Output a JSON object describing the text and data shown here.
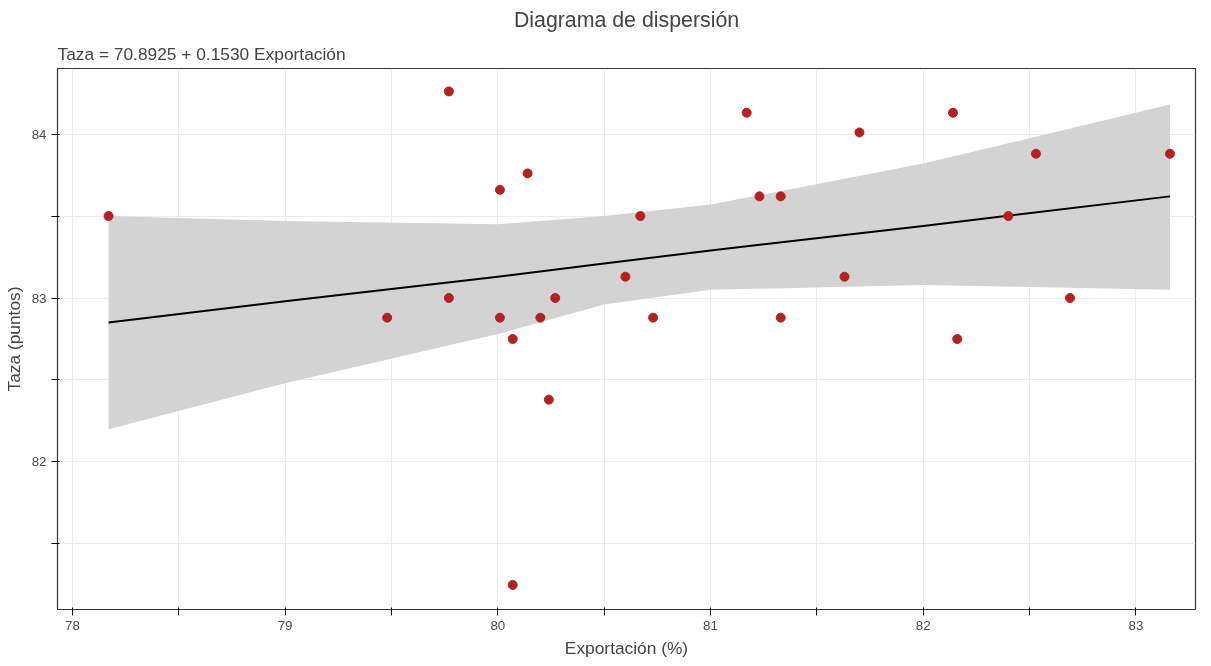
{
  "chart_data": {
    "type": "scatter",
    "title": "Diagrama de dispersión",
    "subtitle": "Taza = 70.8925 + 0.1530 Exportación",
    "xlabel": "Exportación (%)",
    "ylabel": "Taza (puntos)",
    "xlim": [
      77.93,
      83.28
    ],
    "ylim": [
      81.1,
      84.4
    ],
    "xticks": [
      78,
      {
        "value": 78.5,
        "label": null
      },
      79,
      {
        "value": 79.5,
        "label": null
      },
      80,
      {
        "value": 80.5,
        "label": null
      },
      81,
      {
        "value": 81.5,
        "label": null
      },
      82,
      {
        "value": 82.5,
        "label": null
      },
      83
    ],
    "yticks": [
      {
        "value": 81.5,
        "label": null
      },
      82,
      {
        "value": 82.5,
        "label": null
      },
      83,
      {
        "value": 83.5,
        "label": null
      },
      84
    ],
    "grid": true,
    "series": [
      {
        "marker": "circle",
        "color": "#b22222",
        "x": [
          78.17,
          79.48,
          79.77,
          79.77,
          80.01,
          80.01,
          80.07,
          80.07,
          80.14,
          80.2,
          80.24,
          80.27,
          80.6,
          80.67,
          80.73,
          81.17,
          81.23,
          81.33,
          81.33,
          81.63,
          81.7,
          82.14,
          82.16,
          82.4,
          82.53,
          82.69,
          83.16
        ],
        "values": [
          83.5,
          82.88,
          84.26,
          83.0,
          83.66,
          82.88,
          82.75,
          81.25,
          83.76,
          82.88,
          82.38,
          83.0,
          83.13,
          83.5,
          82.88,
          84.13,
          83.62,
          83.62,
          82.88,
          83.13,
          84.01,
          84.13,
          82.75,
          83.5,
          83.88,
          83.0,
          83.88
        ]
      },
      {
        "type": "line",
        "marker": "none",
        "color": "#000000",
        "x": [
          78.17,
          79,
          80,
          80.5,
          81,
          82,
          83.16
        ],
        "values": [
          82.85,
          82.98,
          83.13,
          83.21,
          83.29,
          83.44,
          83.62
        ],
        "lower": [
          82.2,
          82.48,
          82.78,
          82.96,
          83.05,
          83.08,
          83.05
        ],
        "upper": [
          83.5,
          83.47,
          83.45,
          83.5,
          83.57,
          83.82,
          84.18
        ]
      }
    ]
  }
}
